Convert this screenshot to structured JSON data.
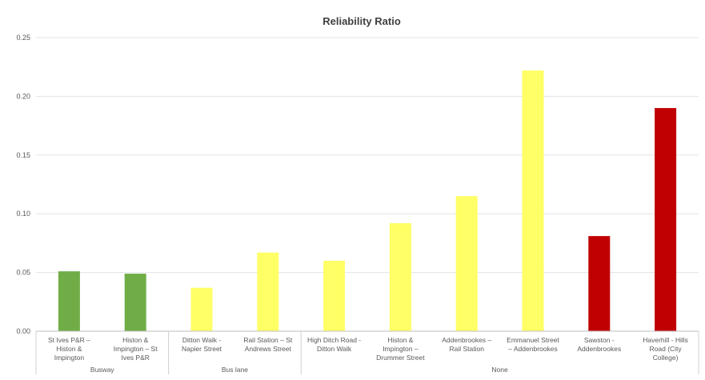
{
  "chart_data": {
    "type": "bar",
    "title": "Reliability Ratio",
    "xlabel": "",
    "ylabel": "",
    "ylim": [
      0,
      0.25
    ],
    "yticks": [
      "0.00",
      "0.05",
      "0.10",
      "0.15",
      "0.20",
      "0.25"
    ],
    "grid": true,
    "legend": "none",
    "categories": [
      [
        "St Ives P&R –",
        "Histon &",
        "Impington"
      ],
      [
        "Histon &",
        "Impington – St",
        "Ives P&R"
      ],
      [
        "Ditton Walk -",
        "Napier Street"
      ],
      [
        "Rail Station – St",
        "Andrews Street"
      ],
      [
        "High Ditch Road -",
        "Ditton Walk"
      ],
      [
        "Histon &",
        "Impington –",
        "Drummer Street"
      ],
      [
        "Addenbrookes –",
        "Rail Station"
      ],
      [
        "Emmanuel Street",
        "– Addenbrookes"
      ],
      [
        "Sawston -",
        "Addenbrookes"
      ],
      [
        "Haverhill - Hills",
        "Road (City",
        "College)"
      ]
    ],
    "values": [
      0.051,
      0.049,
      0.037,
      0.067,
      0.06,
      0.092,
      0.115,
      0.222,
      0.081,
      0.19
    ],
    "bar_colors": [
      "#70ad47",
      "#70ad47",
      "#ffff66",
      "#ffff66",
      "#ffff66",
      "#ffff66",
      "#ffff66",
      "#ffff66",
      "#c00000",
      "#c00000"
    ],
    "groups": [
      {
        "name": "Busway",
        "start": 0,
        "end": 1
      },
      {
        "name": "Bus lane",
        "start": 2,
        "end": 3
      },
      {
        "name": "None",
        "start": 4,
        "end": 9
      }
    ]
  }
}
